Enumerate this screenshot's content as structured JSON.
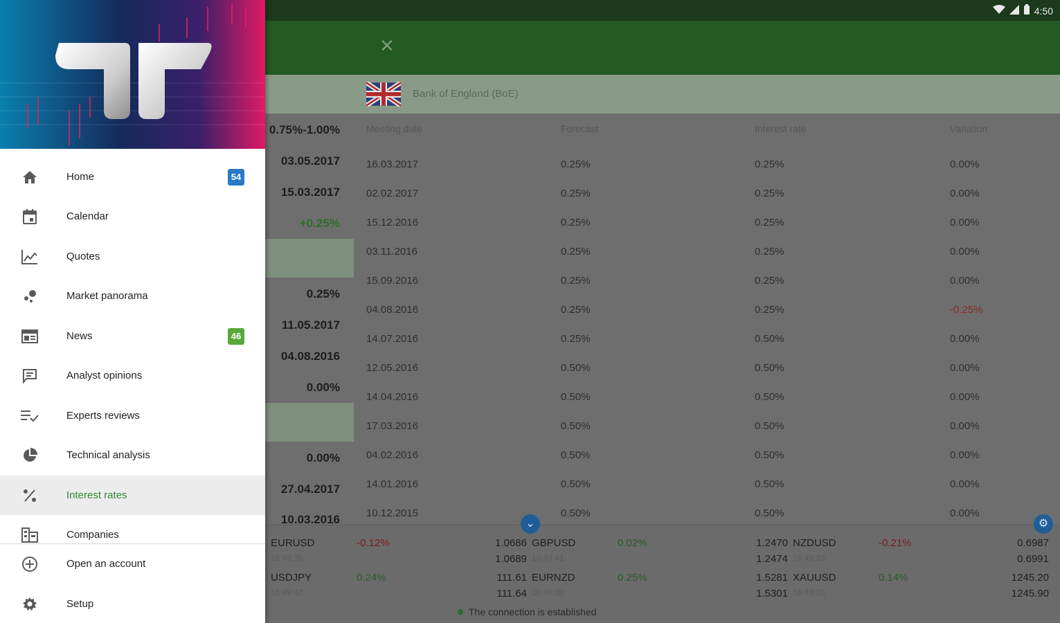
{
  "status_bar": {
    "time": "4:50"
  },
  "bank": {
    "name": "Bank of England (BoE)"
  },
  "summary": {
    "range": "0.75%-1.00%",
    "date_next": "03.05.2017",
    "date_last": "15.03.2017",
    "change": "+0.25%",
    "rate_value": "0.25%",
    "date_b1": "11.05.2017",
    "date_b2": "04.08.2016",
    "value_b": "0.00%",
    "value_c": "0.00%",
    "date_c1": "27.04.2017",
    "date_c2": "10.03.2016"
  },
  "table": {
    "headers": [
      "Meeting date",
      "Forecast",
      "Interest rate",
      "Variation"
    ],
    "rows": [
      [
        "16.03.2017",
        "0.25%",
        "0.25%",
        "0.00%"
      ],
      [
        "02.02.2017",
        "0.25%",
        "0.25%",
        "0.00%"
      ],
      [
        "15.12.2016",
        "0.25%",
        "0.25%",
        "0.00%"
      ],
      [
        "03.11.2016",
        "0.25%",
        "0.25%",
        "0.00%"
      ],
      [
        "15.09.2016",
        "0.25%",
        "0.25%",
        "0.00%"
      ],
      [
        "04.08.2016",
        "0.25%",
        "0.25%",
        "-0.25%"
      ],
      [
        "14.07.2016",
        "0.25%",
        "0.50%",
        "0.00%"
      ],
      [
        "12.05.2016",
        "0.50%",
        "0.50%",
        "0.00%"
      ],
      [
        "14.04.2016",
        "0.50%",
        "0.50%",
        "0.00%"
      ],
      [
        "17.03.2016",
        "0.50%",
        "0.50%",
        "0.00%"
      ],
      [
        "04.02.2016",
        "0.50%",
        "0.50%",
        "0.00%"
      ],
      [
        "14.01.2016",
        "0.50%",
        "0.50%",
        "0.00%"
      ],
      [
        "10.12.2015",
        "0.50%",
        "0.50%",
        "0.00%"
      ]
    ]
  },
  "quotes": [
    {
      "symbol": "EURUSD",
      "time": "16:49:35",
      "change": "-0.12%",
      "bid": "1.0686",
      "ask": "1.0689"
    },
    {
      "symbol": "GBPUSD",
      "time": "16:49:41",
      "change": "0.02%",
      "bid": "1.2470",
      "ask": "1.2474"
    },
    {
      "symbol": "NZDUSD",
      "time": "16:49:33",
      "change": "-0.21%",
      "bid": "0.6987",
      "ask": "0.6991"
    },
    {
      "symbol": "USDJPY",
      "time": "16:49:42",
      "change": "0.24%",
      "bid": "111.61",
      "ask": "111.64"
    },
    {
      "symbol": "EURNZD",
      "time": "16:49:38",
      "change": "0.25%",
      "bid": "1.5281",
      "ask": "1.5301"
    },
    {
      "symbol": "XAUUSD",
      "time": "16:49:38",
      "change": "0.14%",
      "bid": "1245.20",
      "ask": "1245.90"
    }
  ],
  "connection": "The connection is established",
  "drawer": {
    "items": [
      {
        "label": "Home",
        "icon": "home-icon",
        "badge": "54",
        "badge_color": "#2979c9"
      },
      {
        "label": "Calendar",
        "icon": "calendar-icon"
      },
      {
        "label": "Quotes",
        "icon": "quotes-chart-icon"
      },
      {
        "label": "Market panorama",
        "icon": "market-panorama-icon"
      },
      {
        "label": "News",
        "icon": "news-icon",
        "badge": "46",
        "badge_color": "#5aa83a"
      },
      {
        "label": "Analyst opinions",
        "icon": "chat-icon"
      },
      {
        "label": "Experts reviews",
        "icon": "list-check-icon"
      },
      {
        "label": "Technical analysis",
        "icon": "pie-chart-icon"
      },
      {
        "label": "Interest rates",
        "icon": "percent-icon",
        "active": true
      },
      {
        "label": "Companies",
        "icon": "building-icon"
      },
      {
        "label": "Open an account",
        "icon": "add-circle-icon"
      },
      {
        "label": "Setup",
        "icon": "gear-icon"
      }
    ]
  },
  "colors": {
    "accent_green": "#2f8a2f",
    "toolbar": "#215a22",
    "status_bar": "#1a3a1b"
  }
}
